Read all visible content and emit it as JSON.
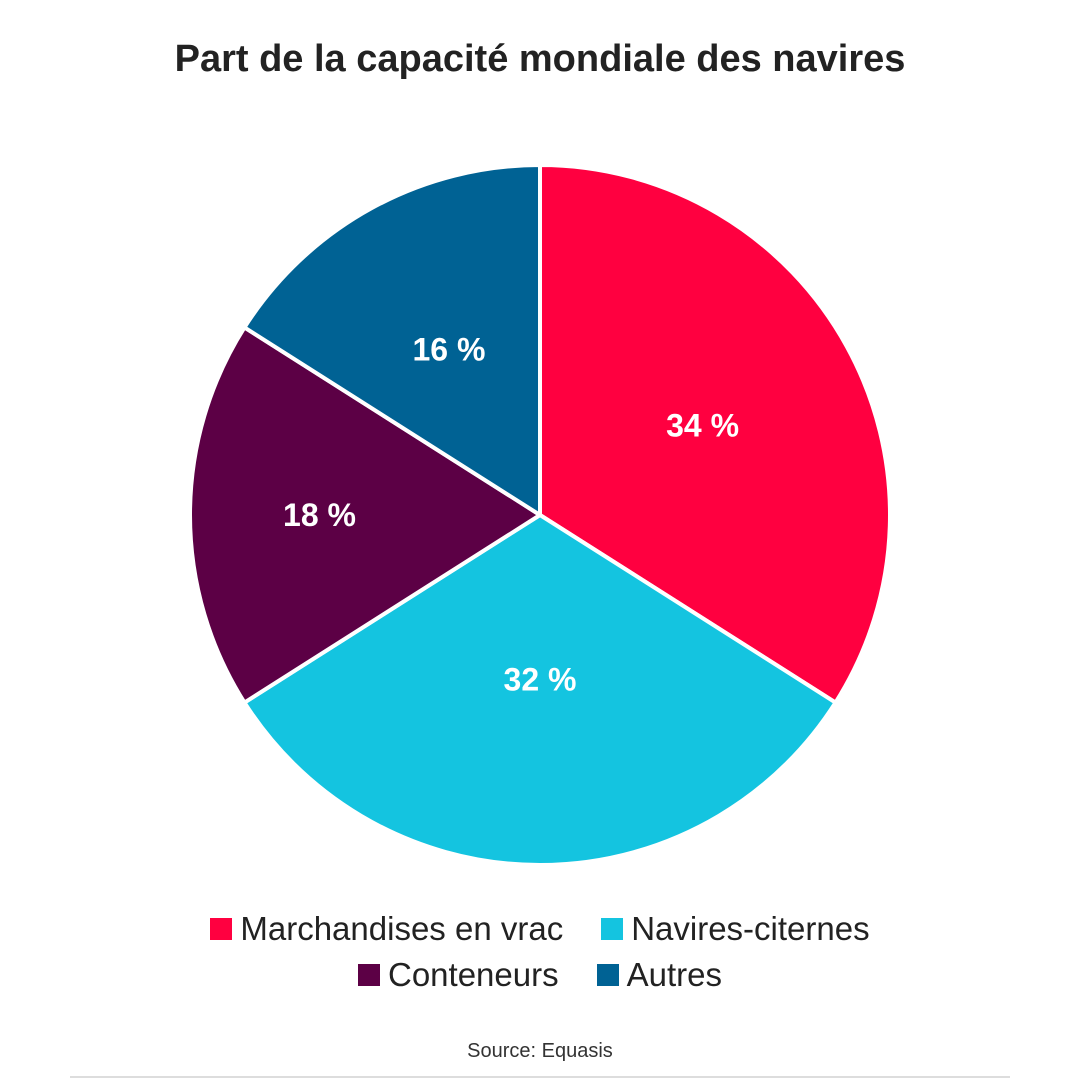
{
  "chart_data": {
    "type": "pie",
    "title": "Part de la capacité mondiale des navires",
    "categories": [
      "Marchandises en vrac",
      "Navires-citernes",
      "Conteneurs",
      "Autres"
    ],
    "values": [
      34,
      32,
      18,
      16
    ],
    "labels": [
      "34 %",
      "32 %",
      "18 %",
      "16 %"
    ],
    "colors": [
      "#ff0040",
      "#14c4e0",
      "#5c0045",
      "#006294"
    ],
    "legend_position": "bottom",
    "start_angle": "12 o'clock, clockwise"
  },
  "source": "Source: Equasis"
}
